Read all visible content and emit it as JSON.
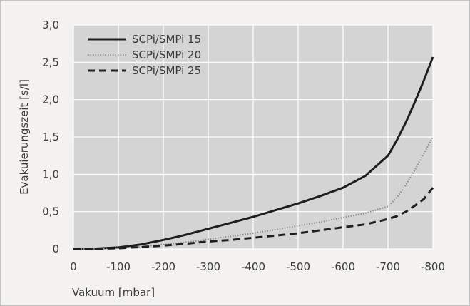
{
  "chart_data": {
    "type": "line",
    "title": "",
    "xlabel": "Vakuum [mbar]",
    "ylabel": "Evakuierungszeit [s/l]",
    "xlim": [
      0,
      -800
    ],
    "ylim": [
      0,
      3.0
    ],
    "grid": true,
    "legend_position": "top-left",
    "x_ticks": [
      0,
      -100,
      -200,
      -300,
      -400,
      -500,
      -600,
      -700,
      -800
    ],
    "x_tick_labels": [
      "0",
      "-100",
      "-200",
      "-300",
      "-400",
      "-500",
      "-600",
      "-700",
      "-800"
    ],
    "y_ticks": [
      0,
      0.5,
      1.0,
      1.5,
      2.0,
      2.5,
      3.0
    ],
    "y_tick_labels": [
      "0",
      "0,5",
      "1,0",
      "1,5",
      "2,0",
      "2,5",
      "3,0"
    ],
    "colors": {
      "plot_background": "#d4d4d4",
      "grid": "#ffffff",
      "series_solid": "#1e1e1e",
      "series_dotted": "#8a8a8a",
      "series_dashed": "#1e1e1e"
    },
    "series": [
      {
        "name": "SCPi/SMPi 15",
        "style": "solid",
        "x": [
          0,
          -50,
          -100,
          -150,
          -200,
          -250,
          -300,
          -350,
          -400,
          -450,
          -500,
          -550,
          -600,
          -650,
          -700,
          -720,
          -740,
          -760,
          -780,
          -800
        ],
        "y": [
          0,
          0.005,
          0.02,
          0.06,
          0.12,
          0.19,
          0.27,
          0.35,
          0.43,
          0.52,
          0.61,
          0.71,
          0.82,
          0.98,
          1.25,
          1.46,
          1.7,
          1.97,
          2.26,
          2.57
        ]
      },
      {
        "name": "SCPi/SMPi 20",
        "style": "dotted",
        "x": [
          0,
          -50,
          -100,
          -150,
          -200,
          -250,
          -300,
          -350,
          -400,
          -450,
          -500,
          -550,
          -600,
          -650,
          -700,
          -720,
          -740,
          -760,
          -780,
          -800
        ],
        "y": [
          0,
          0.003,
          0.01,
          0.03,
          0.06,
          0.09,
          0.13,
          0.17,
          0.21,
          0.26,
          0.31,
          0.36,
          0.42,
          0.48,
          0.57,
          0.69,
          0.86,
          1.06,
          1.28,
          1.5
        ]
      },
      {
        "name": "SCPi/SMPi 25",
        "style": "dashed",
        "x": [
          0,
          -50,
          -100,
          -150,
          -200,
          -250,
          -300,
          -350,
          -400,
          -450,
          -500,
          -550,
          -600,
          -650,
          -700,
          -720,
          -740,
          -760,
          -780,
          -800
        ],
        "y": [
          0,
          0.003,
          0.01,
          0.025,
          0.045,
          0.07,
          0.1,
          0.12,
          0.15,
          0.18,
          0.21,
          0.25,
          0.29,
          0.33,
          0.4,
          0.44,
          0.5,
          0.58,
          0.67,
          0.82
        ]
      }
    ]
  }
}
